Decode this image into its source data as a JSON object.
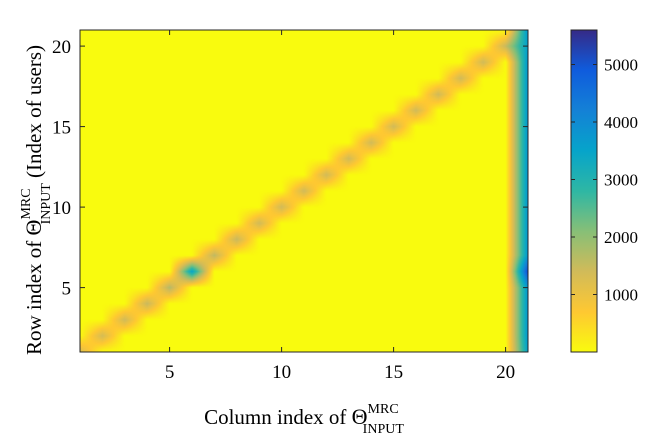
{
  "chart_data": {
    "type": "heatmap",
    "title": "",
    "xlabel": {
      "prefix": "Column index of ",
      "symbol": "Θ",
      "superscript": "MRC",
      "subscript": "INPUT"
    },
    "ylabel": {
      "prefix": "Row index of ",
      "symbol": "Θ",
      "superscript": "MRC",
      "subscript": "INPUT",
      "suffix": "  (Index of users)"
    },
    "xlim": [
      1,
      21
    ],
    "ylim": [
      1,
      21
    ],
    "xticks": [
      5,
      10,
      15,
      20
    ],
    "yticks": [
      5,
      10,
      15,
      20
    ],
    "grid": false,
    "colorbar": {
      "limits": [
        0,
        5600
      ],
      "ticks": [
        1000,
        2000,
        3000,
        4000,
        5000
      ],
      "colormap": "parula",
      "colors": [
        "#352a87",
        "#0f5cdd",
        "#1481d6",
        "#06a4ca",
        "#2eb7a4",
        "#87bf77",
        "#d1bb59",
        "#fec832",
        "#f9fb0e"
      ]
    },
    "base_value": 0,
    "diagonal_values": [
      1300,
      1350,
      1400,
      1500,
      1700,
      3500,
      1600,
      1500,
      1400,
      1400,
      1400,
      1400,
      1400,
      1400,
      1400,
      1400,
      1400,
      1400,
      1400,
      1500,
      3800
    ],
    "last_column_values": [
      3600,
      3800,
      3800,
      3800,
      3800,
      5200,
      3800,
      3800,
      3800,
      3800,
      3800,
      3800,
      3800,
      3800,
      3800,
      3800,
      3800,
      3800,
      3800,
      3600,
      3800
    ]
  }
}
